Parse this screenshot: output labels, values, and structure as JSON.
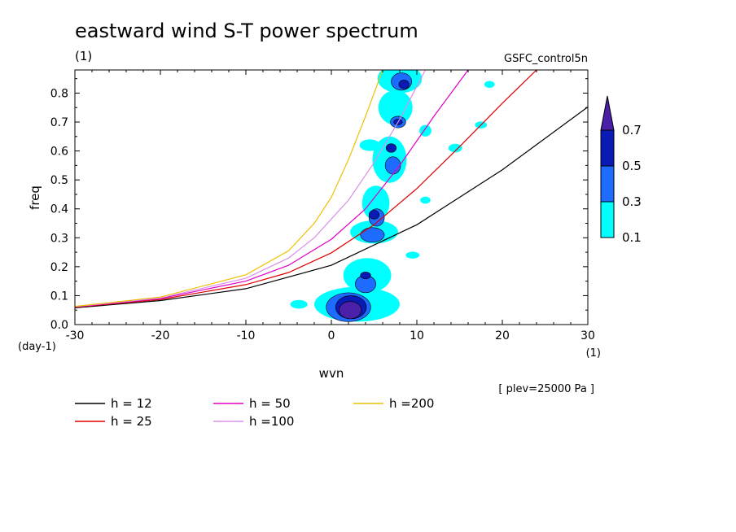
{
  "chart_data": {
    "type": "contour",
    "title": "eastward wind S-T power spectrum",
    "subtitle_left": "(1)",
    "subtitle_right": "GSFC_control5n",
    "xlabel": "wvn",
    "ylabel": "freq",
    "x_unit": "(1)",
    "y_unit": "(day-1)",
    "xlim": [
      -30,
      30
    ],
    "ylim": [
      0.0,
      0.88
    ],
    "x_ticks": [
      "-30",
      "-20",
      "-10",
      "0",
      "10",
      "20",
      "30"
    ],
    "x_tick_values": [
      -30,
      -20,
      -10,
      0,
      10,
      20,
      30
    ],
    "y_ticks": [
      "0.0",
      "0.1",
      "0.2",
      "0.3",
      "0.4",
      "0.5",
      "0.6",
      "0.7",
      "0.8"
    ],
    "y_tick_values": [
      0.0,
      0.1,
      0.2,
      0.3,
      0.4,
      0.5,
      0.6,
      0.7,
      0.8
    ],
    "annotation": "[ plev=25000 Pa ]",
    "colorbar": {
      "labels": [
        "0.1",
        "0.3",
        "0.5",
        "0.7"
      ],
      "levels": [
        0.1,
        0.3,
        0.5,
        0.7
      ],
      "colors": [
        "#00ffff",
        "#1e6cff",
        "#0a1ab4",
        "#4b1fa8"
      ]
    },
    "series": [
      {
        "name": "h = 12",
        "color": "#000000",
        "x": [
          -30,
          -20,
          -10,
          0,
          10,
          20,
          30
        ],
        "y": [
          0.058,
          0.083,
          0.124,
          0.205,
          0.345,
          0.535,
          0.752
        ]
      },
      {
        "name": "h = 25",
        "color": "#e00000",
        "x": [
          -30,
          -20,
          -10,
          -5,
          0,
          5,
          10,
          15,
          20,
          24
        ],
        "y": [
          0.06,
          0.087,
          0.138,
          0.18,
          0.248,
          0.345,
          0.47,
          0.615,
          0.765,
          0.88
        ]
      },
      {
        "name": "h = 50",
        "color": "#e000c8",
        "x": [
          -30,
          -20,
          -10,
          -5,
          0,
          4,
          8,
          12,
          16
        ],
        "y": [
          0.061,
          0.09,
          0.15,
          0.205,
          0.295,
          0.4,
          0.55,
          0.72,
          0.88
        ]
      },
      {
        "name": "h =100",
        "color": "#d890e8",
        "x": [
          -30,
          -20,
          -10,
          -5,
          -2,
          2,
          5,
          8,
          11
        ],
        "y": [
          0.062,
          0.092,
          0.16,
          0.23,
          0.3,
          0.43,
          0.56,
          0.71,
          0.88
        ]
      },
      {
        "name": "h =200",
        "color": "#f0c000",
        "x": [
          -30,
          -20,
          -10,
          -5,
          -2,
          0,
          2,
          4,
          6
        ],
        "y": [
          0.063,
          0.095,
          0.172,
          0.255,
          0.35,
          0.44,
          0.57,
          0.72,
          0.88
        ]
      }
    ],
    "contour_blobs": [
      {
        "level": 0.1,
        "cx": 3.0,
        "cy": 0.07,
        "rx": 5.0,
        "ry": 0.06
      },
      {
        "level": 0.1,
        "cx": 4.2,
        "cy": 0.17,
        "rx": 2.8,
        "ry": 0.06
      },
      {
        "level": 0.1,
        "cx": 5.0,
        "cy": 0.32,
        "rx": 2.8,
        "ry": 0.04
      },
      {
        "level": 0.1,
        "cx": 5.2,
        "cy": 0.42,
        "rx": 1.6,
        "ry": 0.06
      },
      {
        "level": 0.1,
        "cx": 6.8,
        "cy": 0.57,
        "rx": 2.0,
        "ry": 0.08
      },
      {
        "level": 0.1,
        "cx": 7.5,
        "cy": 0.75,
        "rx": 2.0,
        "ry": 0.06
      },
      {
        "level": 0.1,
        "cx": 8.0,
        "cy": 0.85,
        "rx": 2.6,
        "ry": 0.05
      },
      {
        "level": 0.1,
        "cx": -3.8,
        "cy": 0.07,
        "rx": 1.0,
        "ry": 0.015
      },
      {
        "level": 0.1,
        "cx": 4.5,
        "cy": 0.62,
        "rx": 1.2,
        "ry": 0.02
      },
      {
        "level": 0.1,
        "cx": 11.0,
        "cy": 0.67,
        "rx": 0.7,
        "ry": 0.02
      },
      {
        "level": 0.1,
        "cx": 14.5,
        "cy": 0.61,
        "rx": 0.8,
        "ry": 0.015
      },
      {
        "level": 0.1,
        "cx": 17.5,
        "cy": 0.69,
        "rx": 0.7,
        "ry": 0.012
      },
      {
        "level": 0.1,
        "cx": 18.5,
        "cy": 0.83,
        "rx": 0.6,
        "ry": 0.012
      },
      {
        "level": 0.1,
        "cx": 11.0,
        "cy": 0.43,
        "rx": 0.6,
        "ry": 0.012
      },
      {
        "level": 0.1,
        "cx": 9.5,
        "cy": 0.24,
        "rx": 0.8,
        "ry": 0.012
      },
      {
        "level": 0.3,
        "cx": 2.0,
        "cy": 0.06,
        "rx": 2.6,
        "ry": 0.05
      },
      {
        "level": 0.3,
        "cx": 4.0,
        "cy": 0.14,
        "rx": 1.2,
        "ry": 0.03
      },
      {
        "level": 0.3,
        "cx": 4.8,
        "cy": 0.31,
        "rx": 1.4,
        "ry": 0.025
      },
      {
        "level": 0.3,
        "cx": 5.3,
        "cy": 0.37,
        "rx": 0.9,
        "ry": 0.03
      },
      {
        "level": 0.3,
        "cx": 7.2,
        "cy": 0.55,
        "rx": 0.9,
        "ry": 0.03
      },
      {
        "level": 0.3,
        "cx": 7.8,
        "cy": 0.7,
        "rx": 0.9,
        "ry": 0.02
      },
      {
        "level": 0.3,
        "cx": 8.2,
        "cy": 0.84,
        "rx": 1.2,
        "ry": 0.03
      },
      {
        "level": 0.5,
        "cx": 2.3,
        "cy": 0.06,
        "rx": 1.8,
        "ry": 0.04
      },
      {
        "level": 0.5,
        "cx": 4.0,
        "cy": 0.17,
        "rx": 0.6,
        "ry": 0.012
      },
      {
        "level": 0.5,
        "cx": 5.0,
        "cy": 0.38,
        "rx": 0.6,
        "ry": 0.015
      },
      {
        "level": 0.5,
        "cx": 7.0,
        "cy": 0.61,
        "rx": 0.6,
        "ry": 0.015
      },
      {
        "level": 0.5,
        "cx": 7.8,
        "cy": 0.7,
        "rx": 0.5,
        "ry": 0.01
      },
      {
        "level": 0.5,
        "cx": 8.5,
        "cy": 0.83,
        "rx": 0.6,
        "ry": 0.015
      },
      {
        "level": 0.7,
        "cx": 2.2,
        "cy": 0.05,
        "rx": 1.3,
        "ry": 0.03
      }
    ]
  },
  "legend": [
    {
      "label": "h = 12",
      "color": "#000000"
    },
    {
      "label": "h = 25",
      "color": "#e00000"
    },
    {
      "label": "h = 50",
      "color": "#e000c8"
    },
    {
      "label": "h =100",
      "color": "#d890e8"
    },
    {
      "label": "h =200",
      "color": "#f0c000"
    }
  ]
}
